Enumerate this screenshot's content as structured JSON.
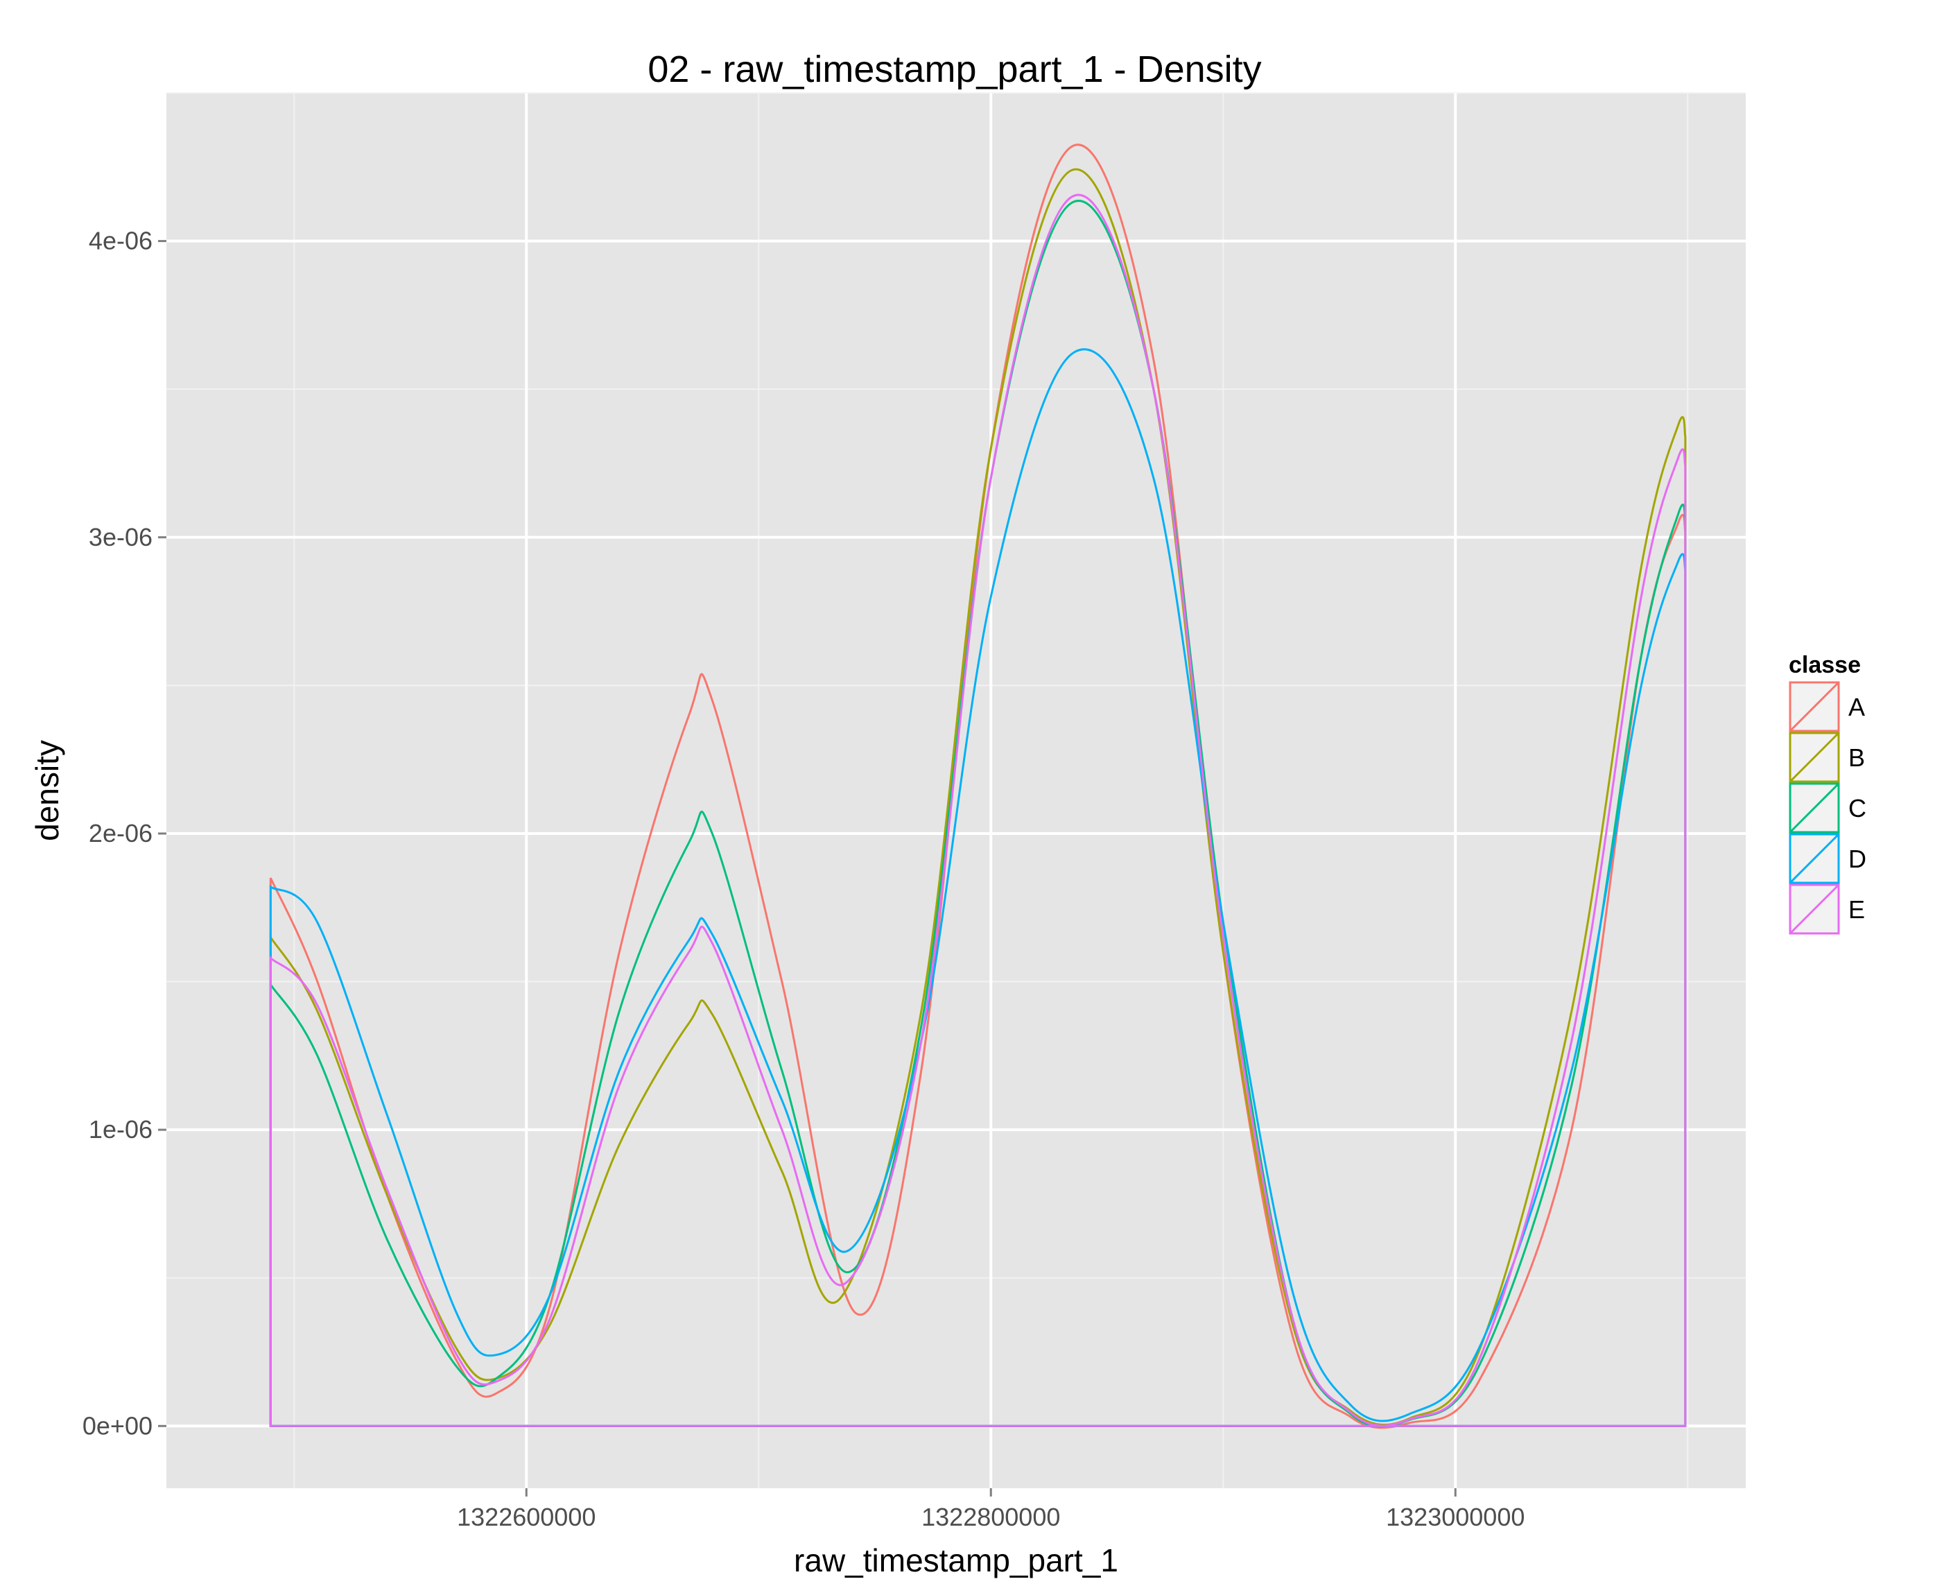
{
  "chart_data": {
    "type": "line",
    "title": "02 - raw_timestamp_part_1 - Density",
    "xlabel": "raw_timestamp_part_1",
    "ylabel": "density",
    "xlim": [
      1322445000,
      1323125000
    ],
    "ylim": [
      -2.1e-07,
      4.5e-06
    ],
    "x_ticks": [
      1322600000,
      1322800000,
      1323000000
    ],
    "x_tick_labels": [
      "1322600000",
      "1322800000",
      "1323000000"
    ],
    "y_ticks": [
      0,
      1e-06,
      2e-06,
      3e-06,
      4e-06
    ],
    "y_tick_labels": [
      "0e+00",
      "1e-06",
      "2e-06",
      "3e-06",
      "4e-06"
    ],
    "grid": true,
    "legend": {
      "title": "classe",
      "position": "right"
    },
    "series": [
      {
        "name": "A",
        "color": "#F8766D",
        "x": [
          1322489868,
          1322510000,
          1322540000,
          1322570000,
          1322587000,
          1322610000,
          1322640000,
          1322670000,
          1322680000,
          1322710000,
          1322742000,
          1322770000,
          1322800000,
          1322835000,
          1322870000,
          1322900000,
          1322930000,
          1322955000,
          1322980000,
          1323010000,
          1323050000,
          1323080000,
          1323096000,
          1323099000
        ],
        "y": [
          1.85e-06,
          1.5e-06,
          7.8e-07,
          2.2e-07,
          1.1e-07,
          4e-07,
          1.6e-06,
          2.4e-06,
          2.45e-06,
          1.5e-06,
          3.8e-07,
          1.2e-06,
          3.3e-06,
          4.32e-06,
          3.6e-06,
          1.6e-06,
          3e-07,
          3e-08,
          1e-08,
          1.5e-07,
          1e-06,
          2.6e-06,
          3.05e-06,
          3.02e-06
        ]
      },
      {
        "name": "B",
        "color": "#A3A500",
        "x": [
          1322489868,
          1322510000,
          1322540000,
          1322570000,
          1322587000,
          1322610000,
          1322640000,
          1322670000,
          1322680000,
          1322710000,
          1322735000,
          1322770000,
          1322800000,
          1322835000,
          1322870000,
          1322900000,
          1322930000,
          1322955000,
          1322980000,
          1323010000,
          1323050000,
          1323080000,
          1323096000,
          1323099000
        ],
        "y": [
          1.65e-06,
          1.4e-06,
          7.8e-07,
          2.6e-07,
          1.6e-07,
          3.4e-07,
          9.5e-07,
          1.36e-06,
          1.39e-06,
          8.6e-07,
          4.3e-07,
          1.4e-06,
          3.3e-06,
          4.24e-06,
          3.5e-06,
          1.6e-06,
          3.4e-07,
          5e-08,
          2.5e-08,
          2.5e-07,
          1.4e-06,
          2.9e-06,
          3.38e-06,
          3.34e-06
        ]
      },
      {
        "name": "C",
        "color": "#00BF7D",
        "x": [
          1322489868,
          1322510000,
          1322540000,
          1322570000,
          1322587000,
          1322610000,
          1322640000,
          1322670000,
          1322680000,
          1322710000,
          1322739000,
          1322770000,
          1322800000,
          1322835000,
          1322870000,
          1322900000,
          1322930000,
          1322955000,
          1322980000,
          1323010000,
          1323050000,
          1323080000,
          1323096000,
          1323099000
        ],
        "y": [
          1.49e-06,
          1.25e-06,
          6.3e-07,
          2e-07,
          1.6e-07,
          4.4e-07,
          1.4e-06,
          1.97e-06,
          2e-06,
          1.2e-06,
          5.2e-07,
          1.35e-06,
          3.2e-06,
          4.13e-06,
          3.5e-06,
          1.7e-06,
          3.6e-07,
          4e-08,
          2e-08,
          2e-07,
          1.15e-06,
          2.6e-06,
          3.08e-06,
          3.06e-06
        ]
      },
      {
        "name": "D",
        "color": "#00B0F6",
        "x": [
          1322489868,
          1322510000,
          1322540000,
          1322570000,
          1322587000,
          1322610000,
          1322640000,
          1322670000,
          1322680000,
          1322710000,
          1322738000,
          1322770000,
          1322800000,
          1322835000,
          1322870000,
          1322900000,
          1322930000,
          1322955000,
          1322980000,
          1323010000,
          1323050000,
          1323080000,
          1323096000,
          1323099000
        ],
        "y": [
          1.82e-06,
          1.7e-06,
          1.05e-06,
          3.8e-07,
          2.4e-07,
          4.4e-07,
          1.2e-06,
          1.64e-06,
          1.66e-06,
          1.1e-06,
          5.9e-07,
          1.3e-06,
          2.8e-06,
          3.62e-06,
          3.2e-06,
          1.7e-06,
          4.5e-07,
          7e-08,
          4e-08,
          2.6e-07,
          1.2e-06,
          2.5e-06,
          2.92e-06,
          2.89e-06
        ]
      },
      {
        "name": "E",
        "color": "#E76BF3",
        "x": [
          1322489868,
          1322510000,
          1322540000,
          1322570000,
          1322587000,
          1322610000,
          1322640000,
          1322670000,
          1322680000,
          1322710000,
          1322737000,
          1322770000,
          1322800000,
          1322835000,
          1322870000,
          1322900000,
          1322930000,
          1322955000,
          1322980000,
          1323010000,
          1323050000,
          1323080000,
          1323096000,
          1323099000
        ],
        "y": [
          1.58e-06,
          1.42e-06,
          8e-07,
          2.4e-07,
          1.5e-07,
          3.6e-07,
          1.15e-06,
          1.6e-06,
          1.63e-06,
          1e-06,
          4.8e-07,
          1.3e-06,
          3.2e-06,
          4.15e-06,
          3.5e-06,
          1.65e-06,
          3.6e-07,
          4.5e-08,
          2.2e-08,
          2.2e-07,
          1.3e-06,
          2.8e-06,
          3.27e-06,
          3.24e-06
        ]
      }
    ]
  }
}
